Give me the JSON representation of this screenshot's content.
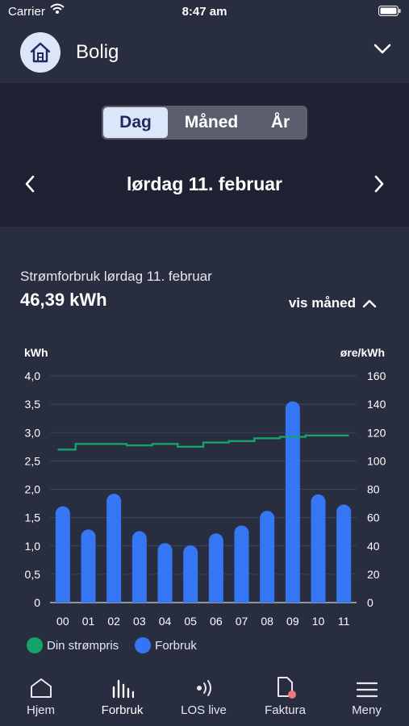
{
  "status_bar": {
    "carrier": "Carrier",
    "time": "8:47 am"
  },
  "header": {
    "title": "Bolig",
    "icon": "house-icon"
  },
  "period_tabs": [
    {
      "label": "Dag",
      "active": true
    },
    {
      "label": "Måned",
      "active": false
    },
    {
      "label": "År",
      "active": false
    }
  ],
  "date": {
    "label": "lørdag 11. februar"
  },
  "summary": {
    "title": "Strømforbruk lørdag 11. februar",
    "value": "46,39 kWh",
    "toggle_label": "vis måned"
  },
  "colors": {
    "bar": "#3576f4",
    "price": "#15a26d",
    "active_tab_bg": "#dbe6fb",
    "badge": "#f27878"
  },
  "chart_data": {
    "type": "bar",
    "y_left_label": "kWh",
    "y_right_label": "øre/kWh",
    "y_left_ticks": [
      "0",
      "0,5",
      "1,0",
      "1,5",
      "2,0",
      "2,5",
      "3,0",
      "3,5",
      "4,0"
    ],
    "y_right_ticks": [
      "0",
      "20",
      "40",
      "60",
      "80",
      "100",
      "120",
      "140",
      "160"
    ],
    "ylim_left": [
      0,
      4.0
    ],
    "ylim_right": [
      0,
      160
    ],
    "grid": true,
    "categories": [
      "00",
      "01",
      "02",
      "03",
      "04",
      "05",
      "06",
      "07",
      "08",
      "09",
      "10",
      "11"
    ],
    "series": [
      {
        "name": "Forbruk",
        "type": "bar",
        "axis": "left",
        "values": [
          1.7,
          1.29,
          1.92,
          1.26,
          1.05,
          1.01,
          1.22,
          1.36,
          1.62,
          3.55,
          1.91,
          1.73
        ]
      },
      {
        "name": "Din strømpris",
        "type": "step-line",
        "axis": "right",
        "values": [
          108,
          112,
          112,
          111,
          112,
          110,
          113,
          114,
          116,
          117,
          118,
          118
        ]
      }
    ],
    "legend_position": "bottom-left"
  },
  "tabbar": [
    {
      "label": "Hjem",
      "icon": "home-icon"
    },
    {
      "label": "Forbruk",
      "icon": "bar-chart-icon"
    },
    {
      "label": "LOS live",
      "icon": "live-signal-icon"
    },
    {
      "label": "Faktura",
      "icon": "invoice-icon"
    },
    {
      "label": "Meny",
      "icon": "menu-icon"
    }
  ]
}
